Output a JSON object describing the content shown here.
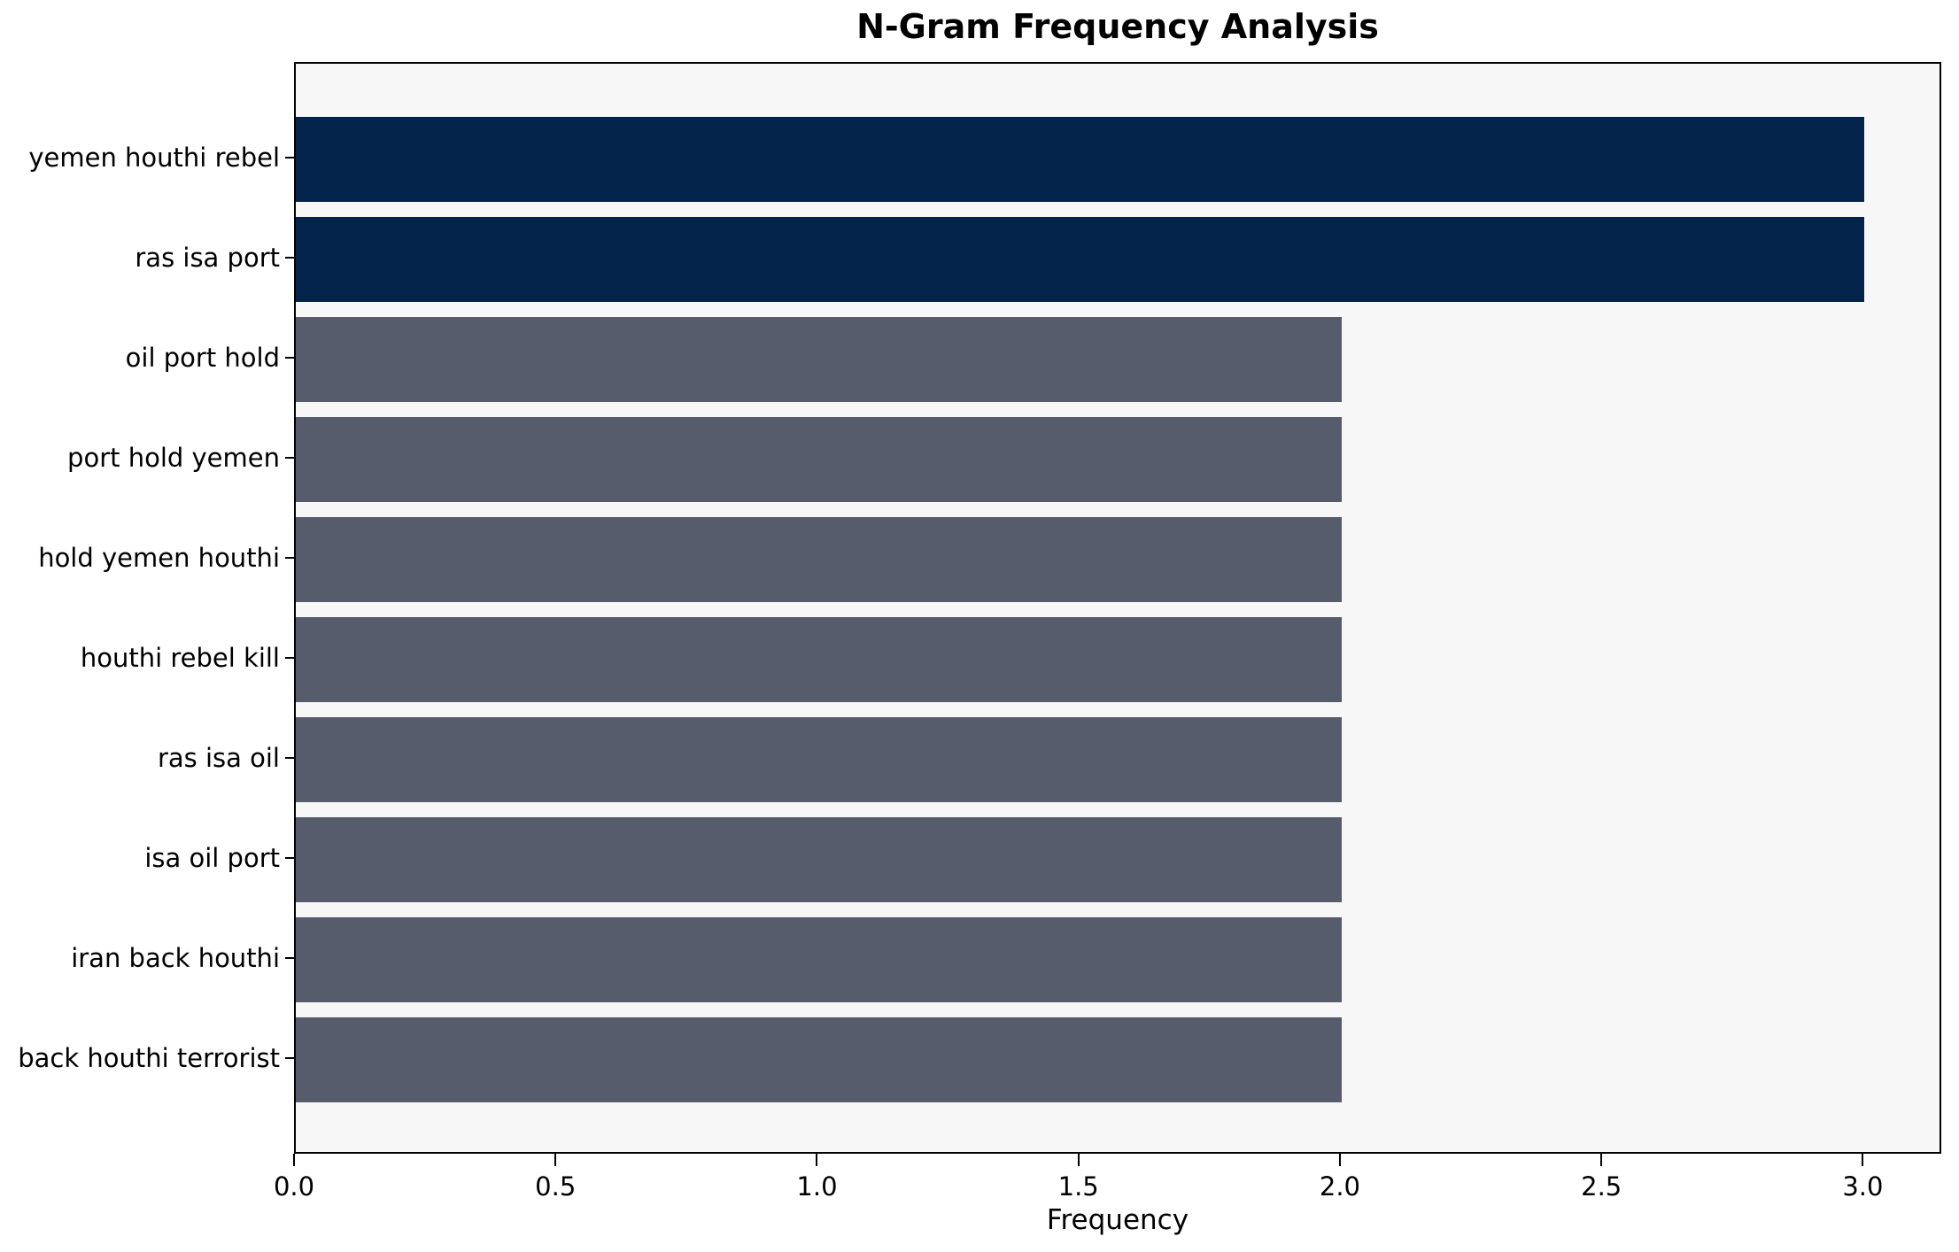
{
  "chart_data": {
    "type": "bar",
    "orientation": "horizontal",
    "title": "N-Gram Frequency Analysis",
    "xlabel": "Frequency",
    "ylabel": "",
    "categories": [
      "yemen houthi rebel",
      "ras isa port",
      "oil port hold",
      "port hold yemen",
      "hold yemen houthi",
      "houthi rebel kill",
      "ras isa oil",
      "isa oil port",
      "iran back houthi",
      "back houthi terrorist"
    ],
    "values": [
      3,
      3,
      2,
      2,
      2,
      2,
      2,
      2,
      2,
      2
    ],
    "bar_colors": [
      "#04234a",
      "#04234a",
      "#565c6b",
      "#565c6b",
      "#565c6b",
      "#565c6b",
      "#565c6b",
      "#565c6b",
      "#565c6b",
      "#565c6b"
    ],
    "xlim": [
      0,
      3.15
    ],
    "xticks": [
      0.0,
      0.5,
      1.0,
      1.5,
      2.0,
      2.5,
      3.0
    ],
    "xtick_labels": [
      "0.0",
      "0.5",
      "1.0",
      "1.5",
      "2.0",
      "2.5",
      "3.0"
    ],
    "grid": "off",
    "legend": "none",
    "colors": {
      "bar_high": "#04234a",
      "bar_normal": "#565c6b",
      "plot_background": "#f7f7f8",
      "figure_background": "#ffffff",
      "spine": "#000000",
      "text": "#000000"
    }
  }
}
